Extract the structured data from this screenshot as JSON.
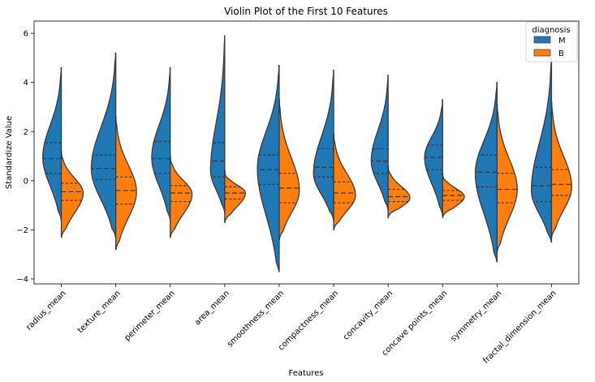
{
  "chart_data": {
    "type": "violin",
    "title": "Violin Plot of the First 10 Features",
    "xlabel": "Features",
    "ylabel": "Standardize Value",
    "ylim": [
      -4.2,
      6.5
    ],
    "yticks": [
      -4,
      -2,
      0,
      2,
      4,
      6
    ],
    "grid": false,
    "legend": {
      "title": "diagnosis",
      "position": "top-right"
    },
    "categories": [
      "radius_mean",
      "texture_mean",
      "perimeter_mean",
      "area_mean",
      "smoothness_mean",
      "compactness_mean",
      "concavity_mean",
      "concave points_mean",
      "symmetry_mean",
      "fractal_dimension_mean"
    ],
    "series": [
      {
        "name": "M",
        "color": "#1f77b4",
        "side": "left",
        "violins": [
          {
            "min": -1.6,
            "max": 4.6,
            "q1": 0.3,
            "median": 0.9,
            "q3": 1.55,
            "mode": 0.95,
            "width": 0.34
          },
          {
            "min": -2.3,
            "max": 5.2,
            "q1": 0.05,
            "median": 0.5,
            "q3": 1.05,
            "mode": 0.5,
            "width": 0.45
          },
          {
            "min": -1.6,
            "max": 4.6,
            "q1": 0.3,
            "median": 0.9,
            "q3": 1.6,
            "mode": 0.95,
            "width": 0.34
          },
          {
            "min": -1.3,
            "max": 5.9,
            "q1": 0.15,
            "median": 0.8,
            "q3": 1.55,
            "mode": 0.4,
            "width": 0.26
          },
          {
            "min": -3.7,
            "max": 4.7,
            "q1": -0.15,
            "median": 0.45,
            "q3": 1.05,
            "mode": 0.5,
            "width": 0.4
          },
          {
            "min": -1.6,
            "max": 4.5,
            "q1": 0.15,
            "median": 0.55,
            "q3": 1.3,
            "mode": 0.3,
            "width": 0.37
          },
          {
            "min": -1.2,
            "max": 4.3,
            "q1": 0.3,
            "median": 0.8,
            "q3": 1.3,
            "mode": 0.8,
            "width": 0.31
          },
          {
            "min": -1.4,
            "max": 3.3,
            "q1": 0.45,
            "median": 0.95,
            "q3": 1.45,
            "mode": 0.95,
            "width": 0.33
          },
          {
            "min": -3.3,
            "max": 4.0,
            "q1": -0.25,
            "median": 0.35,
            "q3": 1.05,
            "mode": 0.3,
            "width": 0.4
          },
          {
            "min": -2.5,
            "max": 5.0,
            "q1": -0.85,
            "median": -0.2,
            "q3": 0.55,
            "mode": -0.4,
            "width": 0.37
          }
        ]
      },
      {
        "name": "B",
        "color": "#ff7f0e",
        "side": "right",
        "violins": [
          {
            "min": -2.3,
            "max": 1.2,
            "q1": -0.8,
            "median": -0.45,
            "q3": -0.1,
            "mode": -0.5,
            "width": 0.4
          },
          {
            "min": -2.8,
            "max": 2.6,
            "q1": -0.95,
            "median": -0.4,
            "q3": 0.15,
            "mode": -0.45,
            "width": 0.38
          },
          {
            "min": -2.3,
            "max": 1.0,
            "q1": -0.85,
            "median": -0.5,
            "q3": -0.2,
            "mode": -0.55,
            "width": 0.4
          },
          {
            "min": -1.7,
            "max": 0.4,
            "q1": -0.75,
            "median": -0.5,
            "q3": -0.25,
            "mode": -0.5,
            "width": 0.38
          },
          {
            "min": -2.4,
            "max": 3.3,
            "q1": -0.9,
            "median": -0.3,
            "q3": 0.3,
            "mode": -0.4,
            "width": 0.37
          },
          {
            "min": -2.0,
            "max": 1.9,
            "q1": -0.9,
            "median": -0.5,
            "q3": -0.05,
            "mode": -0.6,
            "width": 0.4
          },
          {
            "min": -1.5,
            "max": 0.6,
            "q1": -0.85,
            "median": -0.65,
            "q3": -0.35,
            "mode": -0.7,
            "width": 0.4
          },
          {
            "min": -1.5,
            "max": 0.3,
            "q1": -0.8,
            "median": -0.6,
            "q3": -0.4,
            "mode": -0.65,
            "width": 0.4
          },
          {
            "min": -2.9,
            "max": 3.1,
            "q1": -0.9,
            "median": -0.35,
            "q3": 0.3,
            "mode": -0.35,
            "width": 0.37
          },
          {
            "min": -2.3,
            "max": 3.2,
            "q1": -0.6,
            "median": -0.15,
            "q3": 0.45,
            "mode": -0.25,
            "width": 0.37
          }
        ]
      }
    ]
  }
}
